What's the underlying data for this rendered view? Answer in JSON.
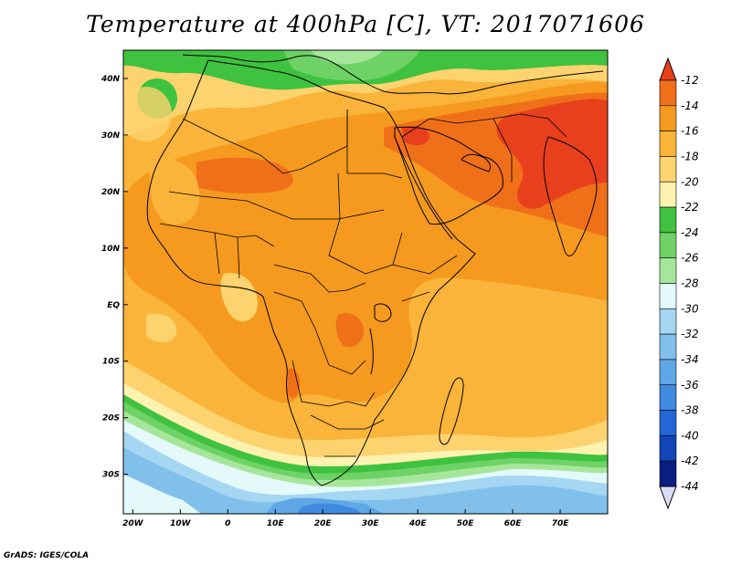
{
  "title": "Temperature at 400hPa [C], VT: 2017071606",
  "footer": "GrADS: IGES/COLA",
  "map": {
    "lon_range": [
      -22,
      80
    ],
    "lat_range": [
      -37,
      45
    ],
    "lon_ticks": [
      {
        "value": -20,
        "label": "20W"
      },
      {
        "value": -10,
        "label": "10W"
      },
      {
        "value": 0,
        "label": "0"
      },
      {
        "value": 10,
        "label": "10E"
      },
      {
        "value": 20,
        "label": "20E"
      },
      {
        "value": 30,
        "label": "30E"
      },
      {
        "value": 40,
        "label": "40E"
      },
      {
        "value": 50,
        "label": "50E"
      },
      {
        "value": 60,
        "label": "60E"
      },
      {
        "value": 70,
        "label": "70E"
      }
    ],
    "lat_ticks": [
      {
        "value": 40,
        "label": "40N"
      },
      {
        "value": 30,
        "label": "30N"
      },
      {
        "value": 20,
        "label": "20N"
      },
      {
        "value": 10,
        "label": "10N"
      },
      {
        "value": 0,
        "label": "EQ"
      },
      {
        "value": -10,
        "label": "10S"
      },
      {
        "value": -20,
        "label": "20S"
      },
      {
        "value": -30,
        "label": "30S"
      }
    ]
  },
  "colorbar": {
    "labels": [
      "-12",
      "-14",
      "-16",
      "-18",
      "-20",
      "-22",
      "-24",
      "-26",
      "-28",
      "-30",
      "-32",
      "-34",
      "-36",
      "-38",
      "-40",
      "-42",
      "-44"
    ],
    "colors": [
      "#e8401c",
      "#f0701a",
      "#f59a1e",
      "#fab43a",
      "#fcd36e",
      "#fdf2b0",
      "#3fc23f",
      "#6ed266",
      "#a6e69a",
      "#e4fafa",
      "#a5d6f2",
      "#82c0ec",
      "#5fa6e6",
      "#3f8ae0",
      "#2366d6",
      "#1246b8",
      "#0a1e82",
      "#dcdcf8"
    ]
  },
  "field_colors": {
    "c12": "#e8401c",
    "c14": "#f0701a",
    "c16": "#f59a1e",
    "c18": "#fab43a",
    "c20": "#fcd36e",
    "c22": "#fdf2b0",
    "c24": "#3fc23f",
    "c26": "#6ed266",
    "c28": "#a6e69a",
    "c30": "#e4fafa",
    "c32": "#a5d6f2",
    "c34": "#82c0ec",
    "c36": "#5fa6e6",
    "c38": "#3f8ae0"
  }
}
